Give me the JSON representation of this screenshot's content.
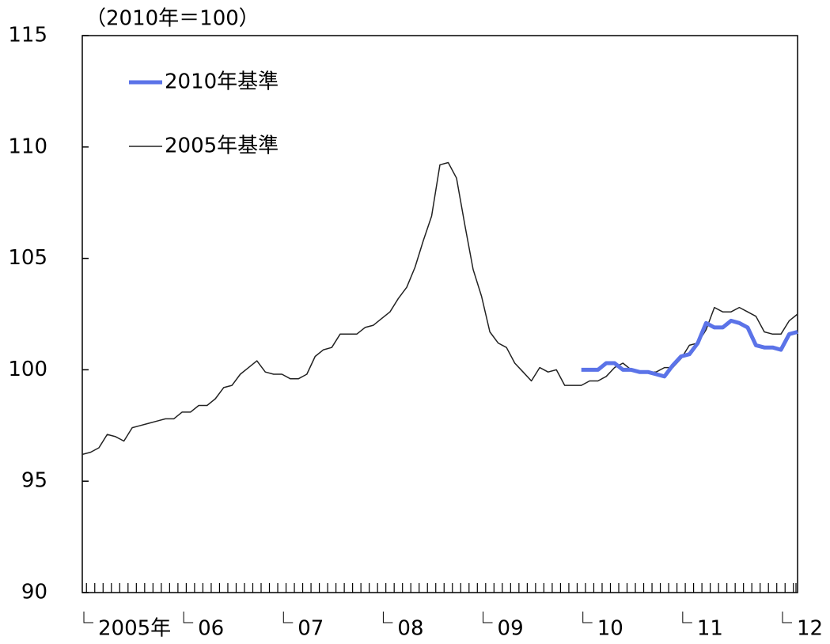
{
  "chart_data": {
    "type": "line",
    "ylabel": "（2010年＝100）",
    "categories": [
      "2005年",
      null,
      null,
      null,
      null,
      null,
      null,
      null,
      null,
      null,
      null,
      null,
      "06",
      null,
      null,
      null,
      null,
      null,
      null,
      null,
      null,
      null,
      null,
      null,
      "07",
      null,
      null,
      null,
      null,
      null,
      null,
      null,
      null,
      null,
      null,
      null,
      "08",
      null,
      null,
      null,
      null,
      null,
      null,
      null,
      null,
      null,
      null,
      null,
      "09",
      null,
      null,
      null,
      null,
      null,
      null,
      null,
      null,
      null,
      null,
      null,
      "10",
      null,
      null,
      null,
      null,
      null,
      null,
      null,
      null,
      null,
      null,
      null,
      "11",
      null,
      null,
      null,
      null,
      null,
      null,
      null,
      null,
      null,
      null,
      null,
      "12",
      null,
      null
    ],
    "series": [
      {
        "name": "2010年基準",
        "color": "#5b73e8",
        "width": 5,
        "values": [
          null,
          null,
          null,
          null,
          null,
          null,
          null,
          null,
          null,
          null,
          null,
          null,
          null,
          null,
          null,
          null,
          null,
          null,
          null,
          null,
          null,
          null,
          null,
          null,
          null,
          null,
          null,
          null,
          null,
          null,
          null,
          null,
          null,
          null,
          null,
          null,
          null,
          null,
          null,
          null,
          null,
          null,
          null,
          null,
          null,
          null,
          null,
          null,
          null,
          null,
          null,
          null,
          null,
          null,
          null,
          null,
          null,
          null,
          null,
          null,
          100.0,
          100.0,
          100.0,
          100.3,
          100.3,
          100.0,
          100.0,
          99.9,
          99.9,
          99.8,
          99.7,
          100.2,
          100.6,
          100.7,
          101.2,
          102.1,
          101.9,
          101.9,
          102.2,
          102.1,
          101.9,
          101.1,
          101.0,
          101.0,
          100.9,
          101.6,
          101.7
        ]
      },
      {
        "name": "2005年基準",
        "color": "#222222",
        "width": 1.5,
        "values": [
          96.2,
          96.3,
          96.5,
          97.1,
          97.0,
          96.8,
          97.4,
          97.5,
          97.6,
          97.7,
          97.8,
          97.8,
          98.1,
          98.1,
          98.4,
          98.4,
          98.7,
          99.2,
          99.3,
          99.8,
          100.1,
          100.4,
          99.9,
          99.8,
          99.8,
          99.6,
          99.6,
          99.8,
          100.6,
          100.9,
          101.0,
          101.6,
          101.6,
          101.6,
          101.9,
          102.0,
          102.3,
          102.6,
          103.2,
          103.7,
          104.6,
          105.8,
          106.9,
          109.2,
          109.3,
          108.6,
          106.5,
          104.5,
          103.3,
          101.7,
          101.2,
          101.0,
          100.3,
          99.9,
          99.5,
          100.1,
          99.9,
          100.0,
          99.3,
          99.3,
          99.3,
          99.5,
          99.5,
          99.7,
          100.1,
          100.3,
          100.0,
          99.9,
          99.9,
          99.9,
          100.1,
          100.1,
          100.5,
          101.1,
          101.2,
          101.8,
          102.8,
          102.6,
          102.6,
          102.8,
          102.6,
          102.4,
          101.7,
          101.6,
          101.6,
          102.2,
          102.5
        ]
      }
    ],
    "ylim": [
      90,
      115
    ],
    "yticks": [
      90,
      95,
      100,
      105,
      110,
      115
    ]
  }
}
